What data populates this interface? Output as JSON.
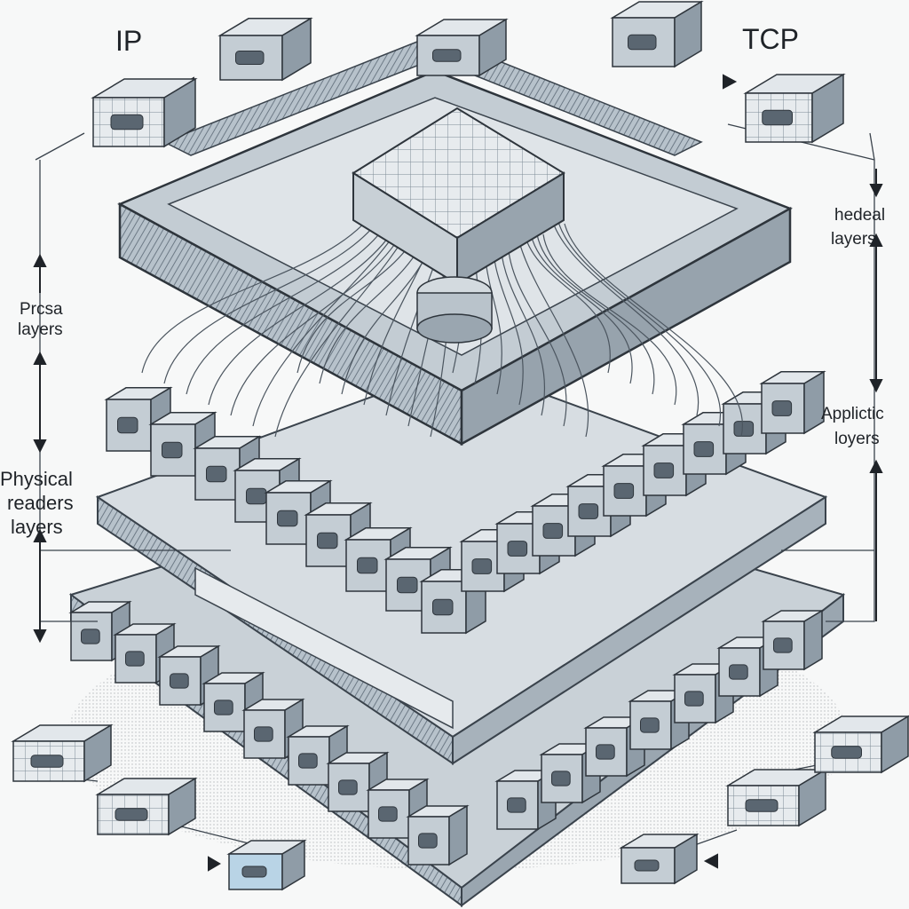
{
  "labels": {
    "top_left": "IP",
    "top_right": "TCP",
    "left_upper_line1": "Prcsa",
    "left_upper_line2": "layers",
    "left_lower_line1": "Physical",
    "left_lower_line2": "readers",
    "left_lower_line3": "layers",
    "right_upper_line1": "hedeal",
    "right_upper_line2": "layers",
    "right_lower_line1": "Applictic",
    "right_lower_line2": "loyers"
  },
  "palette": {
    "ink": "#1f2328",
    "steel": "#aeb9c2",
    "steel_dark": "#5d6a76",
    "steel_light": "#dde3e8",
    "accent_blue": "#9fc4dc",
    "background": "#f7f8f8"
  }
}
